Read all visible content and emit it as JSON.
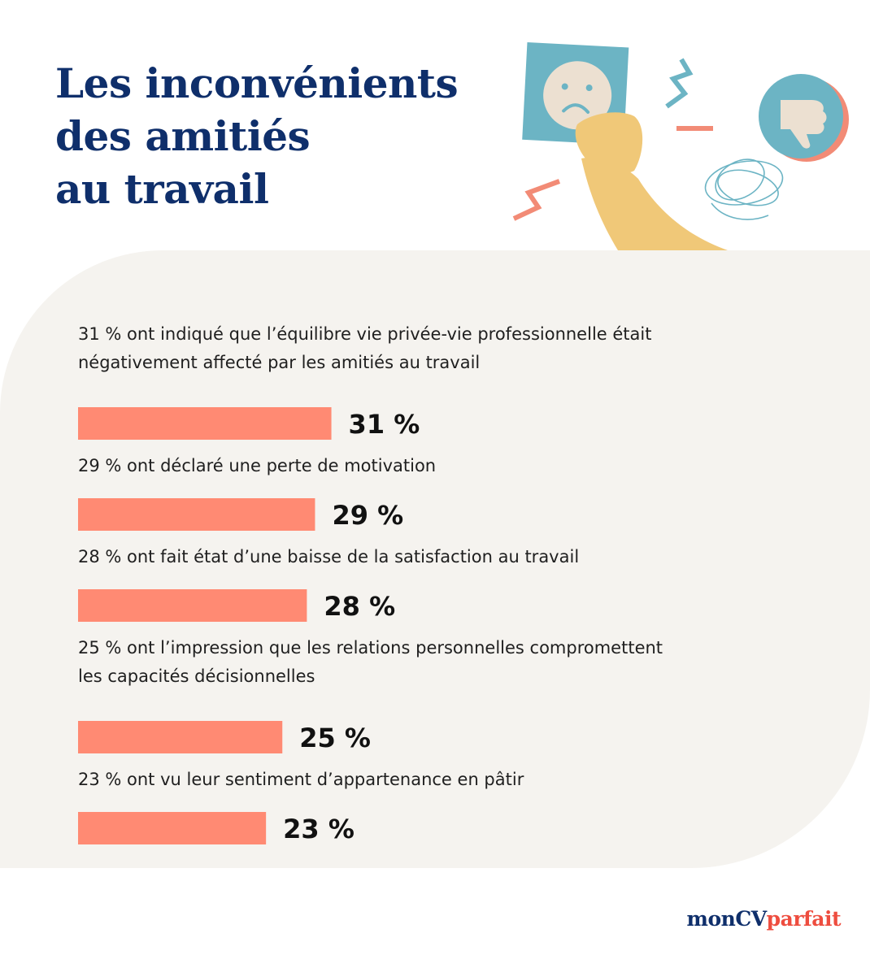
{
  "title_lines": [
    "Les inconvénients",
    "des amitiés",
    "au travail"
  ],
  "brand": {
    "part1": "monCV",
    "part2": "parfait"
  },
  "colors": {
    "bar": "#ff8a73",
    "title": "#0f2f6b",
    "panel": "#f5f3ef",
    "brand_accent": "#ee4d3f"
  },
  "icons": [
    "sad-face-card-icon",
    "hand-icon",
    "thumbs-down-icon",
    "scribble-icon",
    "zigzag-icon"
  ],
  "chart_data": {
    "type": "bar",
    "orientation": "horizontal",
    "categories": [
      "31 % ont indiqué que l’équilibre vie privée-vie professionnelle était négativement affecté par les amitiés au travail",
      "29 % ont déclaré une perte de motivation",
      "28 % ont fait état d’une baisse de la satisfaction au travail",
      "25 % ont l’impression que les relations personnelles compromettent les capacités décisionnelles",
      "23 % ont vu leur sentiment d’appartenance en pâtir"
    ],
    "category_lines": [
      [
        "31 % ont indiqué que l’équilibre vie privée-vie professionnelle était",
        "négativement affecté par les amitiés au travail"
      ],
      [
        "29 % ont déclaré une perte de motivation"
      ],
      [
        "28 % ont fait état d’une baisse de la satisfaction au travail"
      ],
      [
        "25 % ont l’impression que les relations personnelles compromettent",
        "les capacités décisionnelles"
      ],
      [
        "23 % ont vu leur sentiment d’appartenance en pâtir"
      ]
    ],
    "values": [
      31,
      29,
      28,
      25,
      23
    ],
    "value_labels": [
      "31 %",
      "29 %",
      "28 %",
      "25 %",
      "23 %"
    ],
    "unit": "%",
    "xlim": [
      0,
      100
    ],
    "grid": false,
    "legend": "none"
  }
}
